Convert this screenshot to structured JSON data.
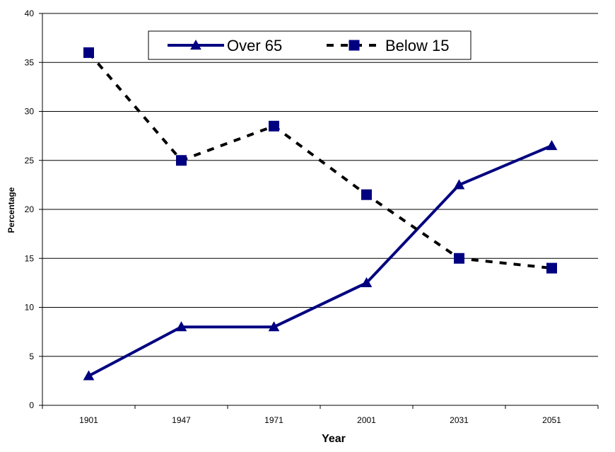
{
  "chart_data": {
    "type": "line",
    "xlabel": "Year",
    "ylabel": "Percentage",
    "categories": [
      "1901",
      "1947",
      "1971",
      "2001",
      "2031",
      "2051"
    ],
    "ylim": [
      0,
      40
    ],
    "yticks": [
      0,
      5,
      10,
      15,
      20,
      25,
      30,
      35,
      40
    ],
    "grid": true,
    "legend_position": "top",
    "series": [
      {
        "name": "Over 65",
        "values": [
          3,
          8,
          8,
          12.5,
          22.5,
          26.5
        ],
        "color": "#000080",
        "line_style": "solid",
        "marker": "triangle"
      },
      {
        "name": "Below 15",
        "values": [
          36,
          25,
          28.5,
          21.5,
          15,
          14
        ],
        "color": "#000080",
        "line_color": "#000000",
        "line_style": "dashed",
        "marker": "square"
      }
    ]
  }
}
